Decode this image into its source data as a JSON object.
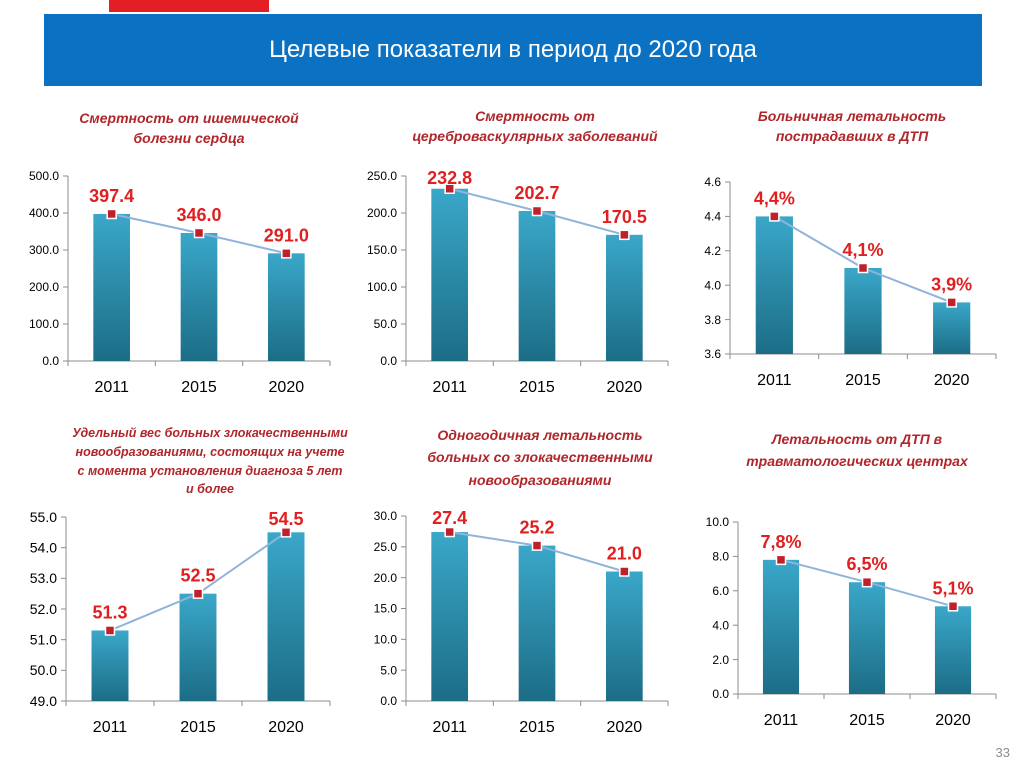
{
  "header": {
    "title": "Целевые показатели в период до 2020 года",
    "accent_color": "#0b71c3",
    "tab_color": "#e31e24"
  },
  "colors": {
    "bar_top": "#3aa7c9",
    "bar_bottom": "#1c6d86",
    "line": "#8fb4d9",
    "marker": "#c0202a",
    "label": "#e02020",
    "title": "#b0262b"
  },
  "page_number": "33",
  "charts": [
    {
      "title_lines": [
        "Смертность от ишемической",
        "болезни сердца"
      ]
    },
    {
      "title_lines": [
        "Смертность от",
        "цереброваскулярных заболеваний"
      ]
    },
    {
      "title_lines": [
        "Больничная летальность",
        "пострадавших в ДТП"
      ]
    },
    {
      "title_lines": [
        "Удельный вес больных злокачественными",
        "новообразованиями, состоящих на учете",
        "с момента установления диагноза 5 лет",
        "и более"
      ]
    },
    {
      "title_lines": [
        "Одногодичная летальность",
        "больных со злокачественными",
        "новообразованиями"
      ]
    },
    {
      "title_lines": [
        "Летальность от ДТП в",
        "травматологических центрах"
      ]
    }
  ],
  "chart_data": [
    {
      "type": "bar",
      "categories": [
        "2011",
        "2015",
        "2020"
      ],
      "values": [
        397.4,
        346.0,
        291.0
      ],
      "value_labels": [
        "397.4",
        "346.0",
        "291.0"
      ],
      "ylim": [
        0,
        500
      ],
      "yticks": [
        "0.0",
        "100.0",
        "200.0",
        "300.0",
        "400.0",
        "500.0"
      ],
      "trend_line": true
    },
    {
      "type": "bar",
      "categories": [
        "2011",
        "2015",
        "2020"
      ],
      "values": [
        232.8,
        202.7,
        170.5
      ],
      "value_labels": [
        "232.8",
        "202.7",
        "170.5"
      ],
      "ylim": [
        0,
        250
      ],
      "yticks": [
        "0.0",
        "50.0",
        "100.0",
        "150.0",
        "200.0",
        "250.0"
      ],
      "trend_line": true
    },
    {
      "type": "bar",
      "categories": [
        "2011",
        "2015",
        "2020"
      ],
      "values": [
        4.4,
        4.1,
        3.9
      ],
      "value_labels": [
        "4,4%",
        "4,1%",
        "3,9%"
      ],
      "ylim": [
        3.6,
        4.6
      ],
      "yticks": [
        "3.6",
        "3.8",
        "4.0",
        "4.2",
        "4.4",
        "4.6"
      ],
      "trend_line": true
    },
    {
      "type": "bar",
      "categories": [
        "2011",
        "2015",
        "2020"
      ],
      "values": [
        51.3,
        52.5,
        54.5
      ],
      "value_labels": [
        "51.3",
        "52.5",
        "54.5"
      ],
      "ylim": [
        49,
        55
      ],
      "yticks": [
        "49.0",
        "50.0",
        "51.0",
        "52.0",
        "53.0",
        "54.0",
        "55.0"
      ],
      "trend_line": true
    },
    {
      "type": "bar",
      "categories": [
        "2011",
        "2015",
        "2020"
      ],
      "values": [
        27.4,
        25.2,
        21.0
      ],
      "value_labels": [
        "27.4",
        "25.2",
        "21.0"
      ],
      "ylim": [
        0,
        30
      ],
      "yticks": [
        "0.0",
        "5.0",
        "10.0",
        "15.0",
        "20.0",
        "25.0",
        "30.0"
      ],
      "trend_line": true
    },
    {
      "type": "bar",
      "categories": [
        "2011",
        "2015",
        "2020"
      ],
      "values": [
        7.8,
        6.5,
        5.1
      ],
      "value_labels": [
        "7,8%",
        "6,5%",
        "5,1%"
      ],
      "ylim": [
        0,
        10
      ],
      "yticks": [
        "0.0",
        "2.0",
        "4.0",
        "6.0",
        "8.0",
        "10.0"
      ],
      "trend_line": true
    }
  ]
}
